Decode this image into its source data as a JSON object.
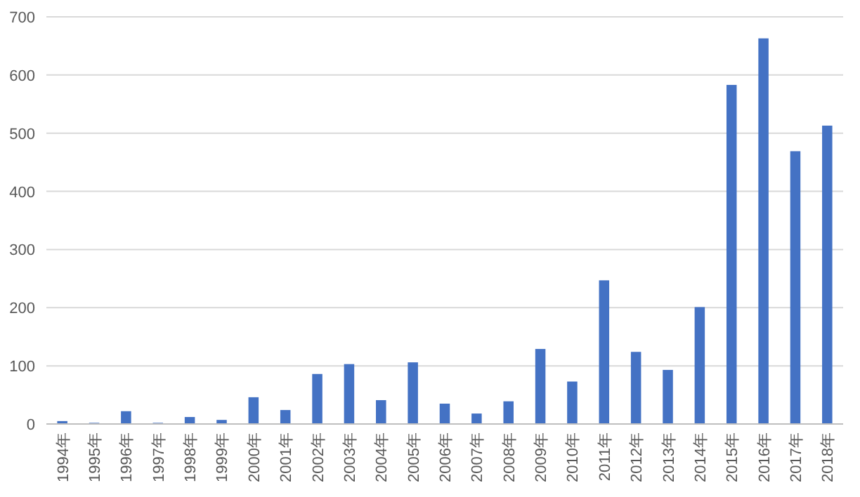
{
  "chart_data": {
    "type": "bar",
    "categories": [
      "1994年",
      "1995年",
      "1996年",
      "1997年",
      "1998年",
      "1999年",
      "2000年",
      "2001年",
      "2002年",
      "2003年",
      "2004年",
      "2005年",
      "2006年",
      "2007年",
      "2008年",
      "2009年",
      "2010年",
      "2011年",
      "2012年",
      "2013年",
      "2014年",
      "2015年",
      "2016年",
      "2017年",
      "2018年"
    ],
    "values": [
      5,
      2,
      22,
      2,
      12,
      7,
      46,
      24,
      86,
      103,
      41,
      106,
      35,
      18,
      39,
      129,
      73,
      247,
      124,
      93,
      201,
      583,
      663,
      469,
      513
    ],
    "color": "#4472c4",
    "ylim": [
      0,
      700
    ],
    "yticks": [
      0,
      100,
      200,
      300,
      400,
      500,
      600,
      700
    ],
    "grid": "y"
  }
}
